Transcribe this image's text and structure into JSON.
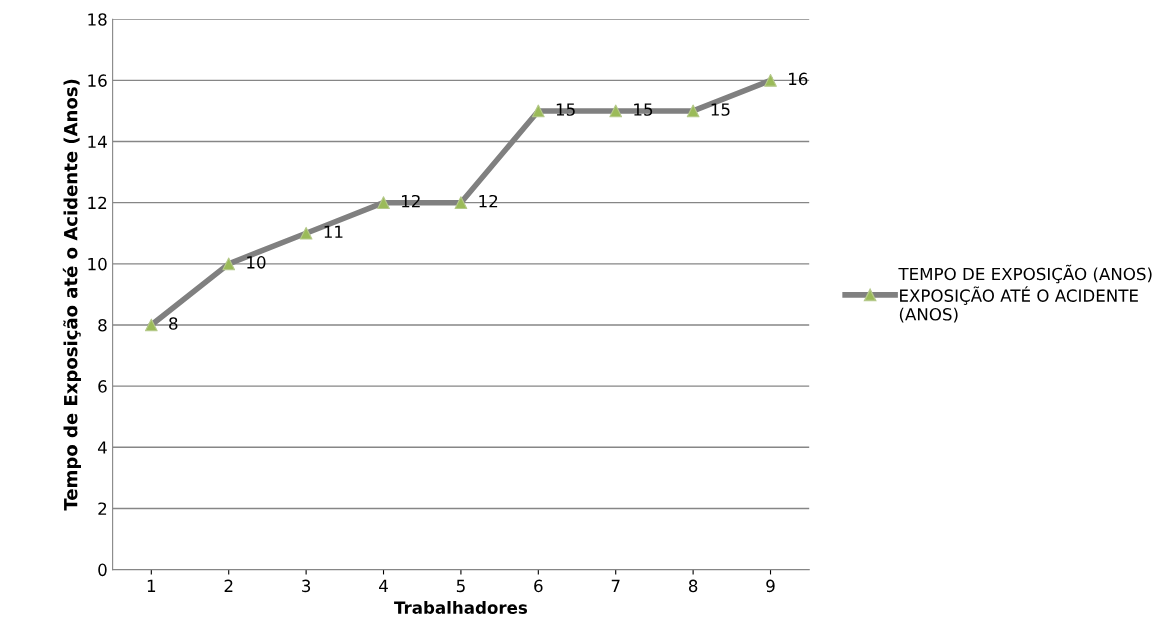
{
  "chart_data": {
    "type": "line",
    "xlabel": "Trabalhadores",
    "ylabel": "Tempo de Exposição até o Acidente (Anos)",
    "categories": [
      "1",
      "2",
      "3",
      "4",
      "5",
      "6",
      "7",
      "8",
      "9"
    ],
    "series": [
      {
        "name": "TEMPO DE EXPOSIÇÃO (ANOS) EXPOSIÇÃO ATÉ O ACIDENTE (ANOS)",
        "color": "#808080",
        "colors": [
          "#9bbb59",
          "#9bbb59",
          "#9bbb59",
          "#9bbb59",
          "#9bbb59",
          "#9bbb59",
          "#9bbb59",
          "#9bbb59",
          "#9bbb59"
        ],
        "values": [
          8,
          10,
          11,
          12,
          12,
          15,
          15,
          15,
          16
        ]
      }
    ],
    "ylim": [
      0,
      18
    ],
    "yticks": [
      0,
      2,
      4,
      6,
      8,
      10,
      12,
      14,
      16,
      18
    ],
    "grid": "y",
    "legend": "right",
    "marker": "triangle",
    "line_style": "solid",
    "data_labels": true
  }
}
